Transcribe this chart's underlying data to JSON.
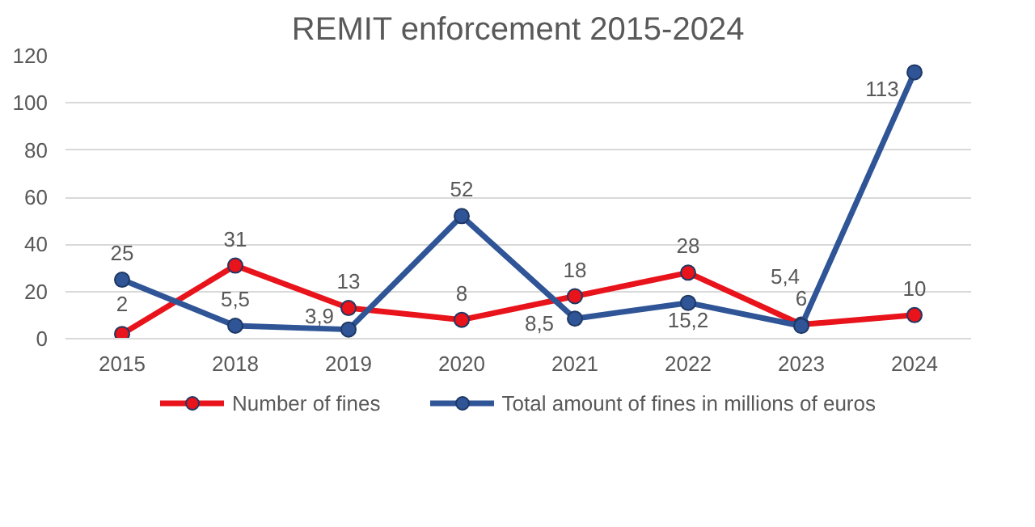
{
  "chart_data": {
    "type": "line",
    "title": "REMIT enforcement 2015-2024",
    "categories": [
      "2015",
      "2018",
      "2019",
      "2020",
      "2021",
      "2022",
      "2023",
      "2024"
    ],
    "series": [
      {
        "name": "Number of fines",
        "color": "#e8131b",
        "values": [
          2,
          31,
          13,
          8,
          18,
          28,
          6,
          10
        ],
        "value_labels": [
          "2",
          "31",
          "13",
          "8",
          "18",
          "28",
          "6",
          "10"
        ]
      },
      {
        "name": "Total amount of fines in millions of euros",
        "color": "#2f5597",
        "values": [
          25,
          5.5,
          3.9,
          52,
          8.5,
          15.2,
          5.4,
          113
        ],
        "value_labels": [
          "25",
          "5,5",
          "3,9",
          "52",
          "8,5",
          "15,2",
          "5,4",
          "113"
        ]
      }
    ],
    "ylim": [
      0,
      120
    ],
    "yticks": [
      0,
      20,
      40,
      60,
      80,
      100,
      120
    ],
    "grid": "y",
    "legend": "bottom",
    "marker": "circle",
    "line_style": "solid"
  }
}
